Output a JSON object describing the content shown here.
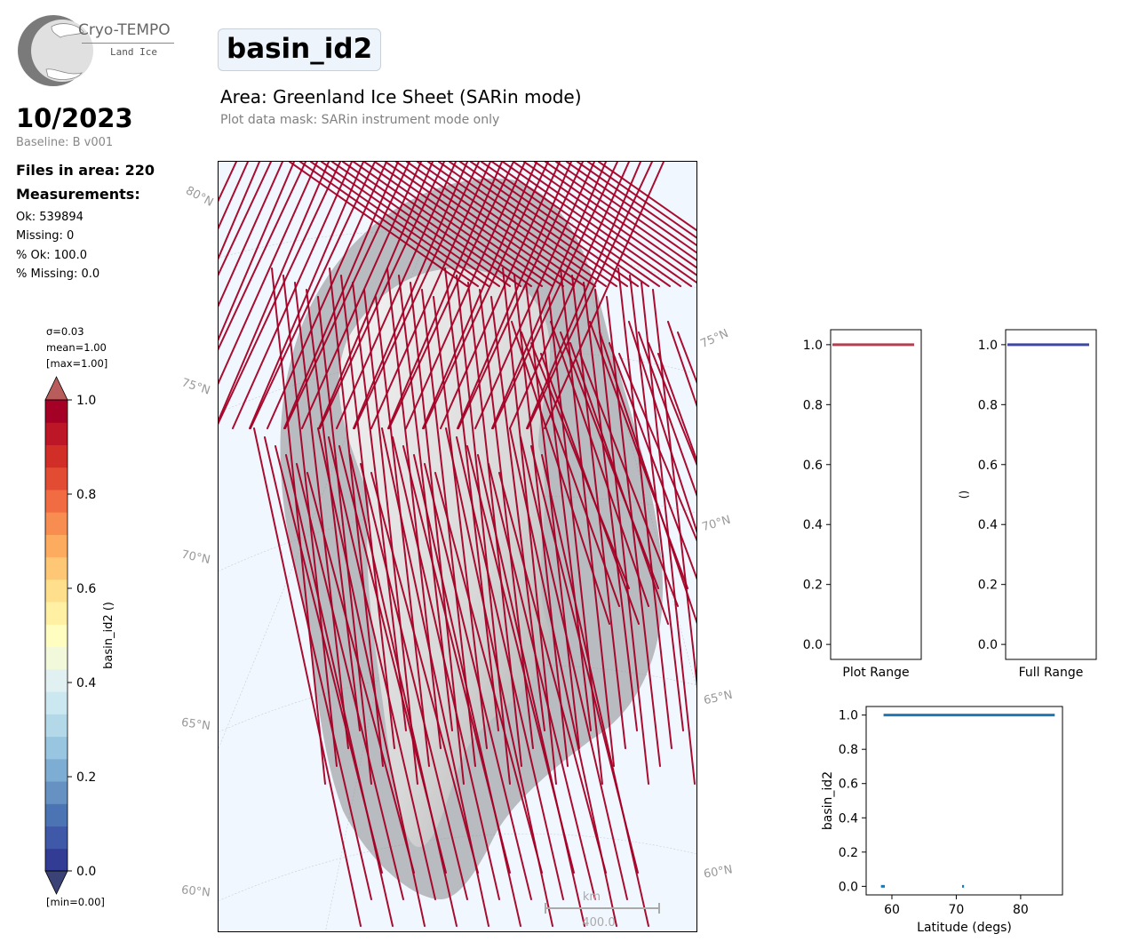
{
  "logo": {
    "name": "Cryo-TEMPO",
    "subtitle": "Land Ice"
  },
  "title": "basin_id2",
  "area_title": "Area: Greenland Ice Sheet (SARin mode)",
  "mask_note": "Plot data mask: SARin instrument mode only",
  "date": "10/2023",
  "baseline": "Baseline: B v001",
  "files_in_area": "Files in area: 220",
  "measurements_label": "Measurements:",
  "stats": [
    "Ok: 539894",
    "Missing: 0",
    "% Ok: 100.0",
    "% Missing: 0.0"
  ],
  "colorbar": {
    "sigma": "σ=0.03",
    "mean": "mean=1.00",
    "max": "[max=1.00]",
    "min": "[min=0.00]",
    "label": "basin_id2 ()",
    "ticks": [
      "1.0",
      "0.8",
      "0.6",
      "0.4",
      "0.2",
      "0.0"
    ],
    "range": [
      0,
      1
    ],
    "colors": [
      "#323c95",
      "#3f59a8",
      "#4b74b5",
      "#6592c2",
      "#7dadd2",
      "#98c6e0",
      "#b3d9e9",
      "#cbe7f0",
      "#e1f1f2",
      "#f2f9db",
      "#fffec0",
      "#fff0a3",
      "#fee08c",
      "#fec775",
      "#fdac5f",
      "#f88d51",
      "#f16c43",
      "#e24c33",
      "#d02e27",
      "#bd1626",
      "#a50026"
    ],
    "over_color": "#b85c5c",
    "under_color": "#3b4276"
  },
  "map": {
    "latitude_labels": [
      "80°N",
      "75°N",
      "70°N",
      "65°N",
      "60°N",
      "75°N",
      "70°N",
      "65°N",
      "60°N"
    ],
    "scale_unit": "km",
    "scale_value": "400.0",
    "track_color": "#a50026"
  },
  "chart_data": [
    {
      "type": "box",
      "xlabel": "Plot Range",
      "ylabel": "",
      "yticks": [
        "0.0",
        "0.2",
        "0.4",
        "0.6",
        "0.8",
        "1.0"
      ],
      "ylim": [
        -0.05,
        1.05
      ],
      "values": [
        1.0
      ],
      "color": "#b0404f"
    },
    {
      "type": "box",
      "xlabel": "Full Range",
      "ylabel": "()",
      "yticks": [
        "0.0",
        "0.2",
        "0.4",
        "0.6",
        "0.8",
        "1.0"
      ],
      "ylim": [
        -0.05,
        1.05
      ],
      "values": [
        1.0
      ],
      "color": "#3f48a0"
    },
    {
      "type": "scatter",
      "xlabel": "Latitude (degs)",
      "ylabel": "basin_id2",
      "xticks": [
        "60",
        "70",
        "80"
      ],
      "yticks": [
        "0.0",
        "0.2",
        "0.4",
        "0.6",
        "0.8",
        "1.0"
      ],
      "xlim": [
        56,
        86.5
      ],
      "ylim": [
        -0.05,
        1.05
      ],
      "series": [
        {
          "segments": [
            [
              58.3,
              58.9,
              0.0
            ],
            [
              70.9,
              71.2,
              0.0
            ],
            [
              58.7,
              85.3,
              1.0
            ]
          ]
        }
      ],
      "color": "#1f77b4"
    }
  ]
}
